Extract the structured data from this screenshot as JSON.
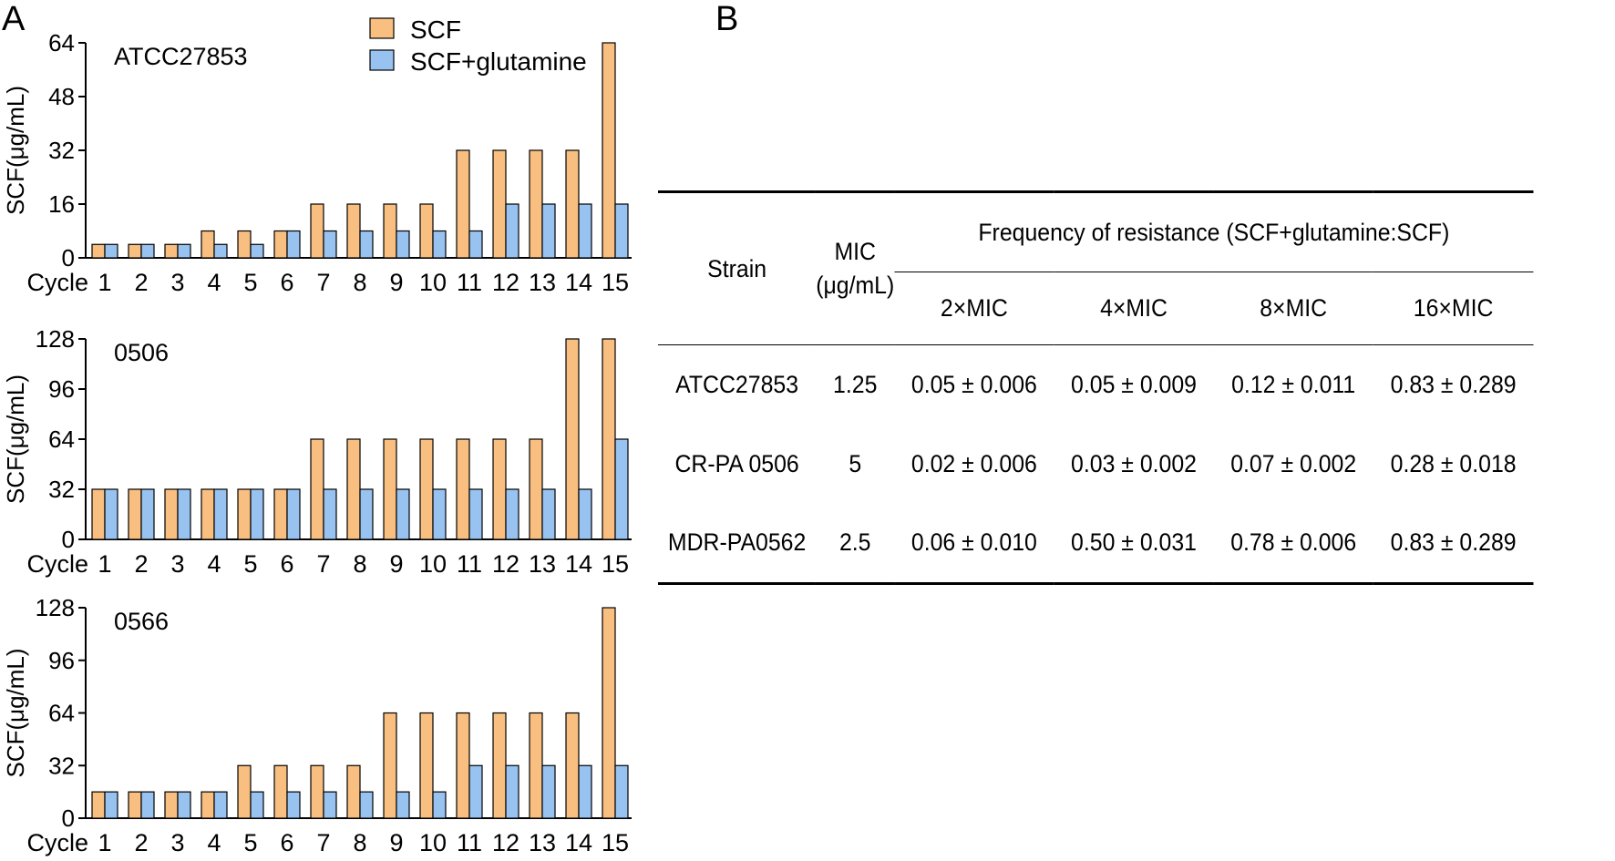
{
  "panels": {
    "a": "A",
    "b": "B"
  },
  "legend": {
    "scf": "SCF",
    "scf_glutamine": "SCF+glutamine"
  },
  "colors": {
    "scf": "#f8bf80",
    "scf_glutamine": "#98c2f0",
    "outline": "#000000"
  },
  "chart_data": [
    {
      "type": "bar",
      "title": "ATCC27853",
      "xlabel": "Cycle",
      "ylabel": "SCF(μg/mL)",
      "categories": [
        "1",
        "2",
        "3",
        "4",
        "5",
        "6",
        "7",
        "8",
        "9",
        "10",
        "11",
        "12",
        "13",
        "14",
        "15"
      ],
      "yticks": [
        0,
        16,
        32,
        48,
        64
      ],
      "ylim": [
        0,
        64
      ],
      "series": [
        {
          "name": "SCF",
          "values": [
            4,
            4,
            4,
            8,
            8,
            8,
            16,
            16,
            16,
            16,
            32,
            32,
            32,
            32,
            64
          ]
        },
        {
          "name": "SCF+glutamine",
          "values": [
            4,
            4,
            4,
            4,
            4,
            8,
            8,
            8,
            8,
            8,
            8,
            16,
            16,
            16,
            16
          ]
        }
      ]
    },
    {
      "type": "bar",
      "title": "0506",
      "xlabel": "Cycle",
      "ylabel": "SCF(μg/mL)",
      "categories": [
        "1",
        "2",
        "3",
        "4",
        "5",
        "6",
        "7",
        "8",
        "9",
        "10",
        "11",
        "12",
        "13",
        "14",
        "15"
      ],
      "yticks": [
        0,
        32,
        64,
        96,
        128
      ],
      "ylim": [
        0,
        128
      ],
      "series": [
        {
          "name": "SCF",
          "values": [
            32,
            32,
            32,
            32,
            32,
            32,
            64,
            64,
            64,
            64,
            64,
            64,
            64,
            128,
            128
          ]
        },
        {
          "name": "SCF+glutamine",
          "values": [
            32,
            32,
            32,
            32,
            32,
            32,
            32,
            32,
            32,
            32,
            32,
            32,
            32,
            32,
            64
          ]
        }
      ]
    },
    {
      "type": "bar",
      "title": "0566",
      "xlabel": "Cycle",
      "ylabel": "SCF(μg/mL)",
      "categories": [
        "1",
        "2",
        "3",
        "4",
        "5",
        "6",
        "7",
        "8",
        "9",
        "10",
        "11",
        "12",
        "13",
        "14",
        "15"
      ],
      "yticks": [
        0,
        32,
        64,
        96,
        128
      ],
      "ylim": [
        0,
        128
      ],
      "series": [
        {
          "name": "SCF",
          "values": [
            16,
            16,
            16,
            16,
            32,
            32,
            32,
            32,
            64,
            64,
            64,
            64,
            64,
            64,
            128
          ]
        },
        {
          "name": "SCF+glutamine",
          "values": [
            16,
            16,
            16,
            16,
            16,
            16,
            16,
            16,
            16,
            16,
            32,
            32,
            32,
            32,
            32
          ]
        }
      ]
    }
  ],
  "table": {
    "headers": {
      "strain": "Strain",
      "mic_line1": "MIC",
      "mic_line2": "(μg/mL)",
      "frequency": "Frequency of resistance (SCF+glutamine:SCF)",
      "col2x": "2×MIC",
      "col4x": "4×MIC",
      "col8x": "8×MIC",
      "col16x": "16×MIC"
    },
    "rows": [
      {
        "strain": "ATCC27853",
        "mic": "1.25",
        "v2": "0.05 ± 0.006",
        "v4": "0.05 ± 0.009",
        "v8": "0.12 ± 0.011",
        "v16": "0.83 ± 0.289"
      },
      {
        "strain": "CR-PA 0506",
        "mic": "5",
        "v2": "0.02 ± 0.006",
        "v4": "0.03 ± 0.002",
        "v8": "0.07 ± 0.002",
        "v16": "0.28 ± 0.018"
      },
      {
        "strain": "MDR-PA0562",
        "mic": "2.5",
        "v2": "0.06 ± 0.010",
        "v4": "0.50 ± 0.031",
        "v8": "0.78 ± 0.006",
        "v16": "0.83 ± 0.289"
      }
    ]
  }
}
